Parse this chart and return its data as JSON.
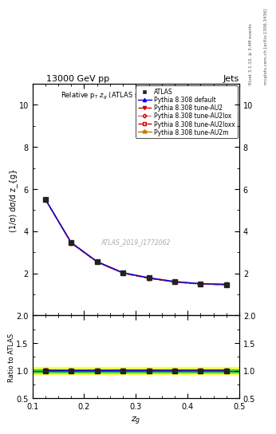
{
  "title_top": "13000 GeV pp",
  "title_right": "Jets",
  "plot_title": "Relative p_{T} z_{g} (ATLAS soft-drop observables)",
  "xlabel": "z_{g}",
  "ylabel_main": "(1/σ) dσ/d z_{g}",
  "ylabel_ratio": "Ratio to ATLAS",
  "right_label_top": "Rivet 3.1.10, ≥ 3.4M events",
  "right_label_bottom": "mcplots.cern.ch [arXiv:1306.3436]",
  "watermark": "ATLAS_2019_I1772062",
  "zg_values": [
    0.125,
    0.175,
    0.225,
    0.275,
    0.325,
    0.375,
    0.425,
    0.475
  ],
  "atlas_data": [
    5.5,
    3.45,
    2.55,
    2.02,
    1.78,
    1.6,
    1.5,
    1.47
  ],
  "atlas_errors": [
    0.08,
    0.05,
    0.04,
    0.03,
    0.03,
    0.03,
    0.02,
    0.02
  ],
  "pythia_default": [
    5.52,
    3.46,
    2.56,
    2.03,
    1.79,
    1.61,
    1.51,
    1.48
  ],
  "pythia_AU2": [
    5.51,
    3.44,
    2.54,
    2.01,
    1.77,
    1.59,
    1.49,
    1.46
  ],
  "pythia_AU2lox": [
    5.51,
    3.44,
    2.54,
    2.01,
    1.77,
    1.59,
    1.49,
    1.46
  ],
  "pythia_AU2loxx": [
    5.51,
    3.44,
    2.54,
    2.01,
    1.77,
    1.59,
    1.49,
    1.46
  ],
  "pythia_AU2m": [
    5.52,
    3.46,
    2.56,
    2.03,
    1.79,
    1.61,
    1.51,
    1.48
  ],
  "ratio_default": [
    1.004,
    1.003,
    1.004,
    1.005,
    1.006,
    1.006,
    1.007,
    1.007
  ],
  "ratio_AU2": [
    1.002,
    0.997,
    0.996,
    0.995,
    0.994,
    0.994,
    0.993,
    0.993
  ],
  "ratio_AU2lox": [
    1.002,
    0.997,
    0.996,
    0.995,
    0.994,
    0.994,
    0.993,
    0.993
  ],
  "ratio_AU2loxx": [
    1.002,
    0.997,
    0.996,
    0.995,
    0.994,
    0.994,
    0.993,
    0.993
  ],
  "ratio_AU2m": [
    1.004,
    1.003,
    1.004,
    1.005,
    1.006,
    1.006,
    1.007,
    1.007
  ],
  "color_default": "#0000ee",
  "color_AU2": "#cc0000",
  "color_AU2lox": "#cc0000",
  "color_AU2loxx": "#cc0000",
  "color_AU2m": "#cc7700",
  "color_atlas": "#222222",
  "color_band_yellow": "#ffff44",
  "color_band_green": "#44cc44",
  "ylim_main": [
    0,
    11
  ],
  "ylim_ratio": [
    0.5,
    2.0
  ],
  "xlim": [
    0.1,
    0.5
  ],
  "yticks_main": [
    2,
    4,
    6,
    8,
    10
  ],
  "yticks_ratio": [
    0.5,
    1.0,
    1.5,
    2.0
  ],
  "xticks": [
    0.1,
    0.2,
    0.3,
    0.4,
    0.5
  ]
}
